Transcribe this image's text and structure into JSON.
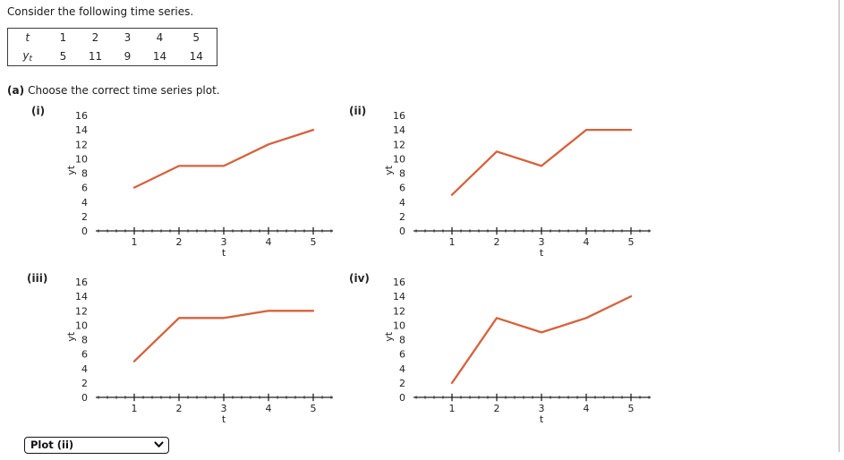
{
  "header": {
    "intro": "Consider the following time series."
  },
  "table": {
    "t_label": "t",
    "y_label": {
      "base": "y",
      "sub": "t"
    },
    "t_values": [
      "1",
      "2",
      "3",
      "4",
      "5"
    ],
    "y_values": [
      "5",
      "11",
      "9",
      "14",
      "14"
    ]
  },
  "part_a": {
    "prefix": "(a)",
    "text": "Choose the correct time series plot."
  },
  "answer": {
    "selected": "Plot (ii)"
  },
  "colors": {
    "series_line": "#d6613c",
    "axis": "#222222",
    "tick_text": "#222222"
  },
  "chart_data": [
    {
      "type": "line",
      "label": "(i)",
      "x": [
        1,
        2,
        3,
        4,
        5
      ],
      "y": [
        6,
        9,
        9,
        12,
        14
      ],
      "xlabel": "t",
      "ylabel": "yt",
      "xlim": [
        0,
        5.4
      ],
      "ylim": [
        0,
        16
      ],
      "xticks": [
        1,
        2,
        3,
        4,
        5
      ],
      "yticks": [
        0,
        2,
        4,
        6,
        8,
        10,
        12,
        14,
        16
      ],
      "minor_x_step": 0.2,
      "grid": false,
      "legend": false
    },
    {
      "type": "line",
      "label": "(ii)",
      "x": [
        1,
        2,
        3,
        4,
        5
      ],
      "y": [
        5,
        11,
        9,
        14,
        14
      ],
      "xlabel": "t",
      "ylabel": "yt",
      "xlim": [
        0,
        5.4
      ],
      "ylim": [
        0,
        16
      ],
      "xticks": [
        1,
        2,
        3,
        4,
        5
      ],
      "yticks": [
        0,
        2,
        4,
        6,
        8,
        10,
        12,
        14,
        16
      ],
      "minor_x_step": 0.2,
      "grid": false,
      "legend": false
    },
    {
      "type": "line",
      "label": "(iii)",
      "x": [
        1,
        2,
        3,
        4,
        5
      ],
      "y": [
        5,
        11,
        11,
        12,
        12
      ],
      "xlabel": "t",
      "ylabel": "yt",
      "xlim": [
        0,
        5.4
      ],
      "ylim": [
        0,
        16
      ],
      "xticks": [
        1,
        2,
        3,
        4,
        5
      ],
      "yticks": [
        0,
        2,
        4,
        6,
        8,
        10,
        12,
        14,
        16
      ],
      "minor_x_step": 0.2,
      "grid": false,
      "legend": false
    },
    {
      "type": "line",
      "label": "(iv)",
      "x": [
        1,
        2,
        3,
        4,
        5
      ],
      "y": [
        2,
        11,
        9,
        11,
        14
      ],
      "xlabel": "t",
      "ylabel": "yt",
      "xlim": [
        0,
        5.4
      ],
      "ylim": [
        0,
        16
      ],
      "xticks": [
        1,
        2,
        3,
        4,
        5
      ],
      "yticks": [
        0,
        2,
        4,
        6,
        8,
        10,
        12,
        14,
        16
      ],
      "minor_x_step": 0.2,
      "grid": false,
      "legend": false
    }
  ]
}
